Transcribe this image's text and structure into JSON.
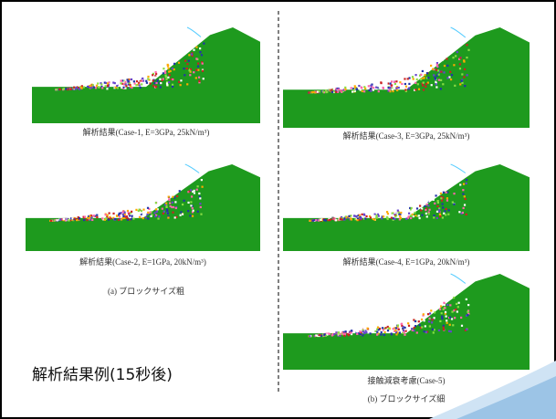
{
  "title": "解析結果例(15秒後)",
  "panels": [
    {
      "caption": "解析結果(Case-1, E=3GPa, 25kN/m³)"
    },
    {
      "caption": "解析結果(Case-2, E=1GPa, 20kN/m³)"
    },
    {
      "caption": "解析結果(Case-3, E=3GPa, 25kN/m³)"
    },
    {
      "caption": "解析結果(Case-4, E=1GPa, 20kN/m³)"
    },
    {
      "caption": "接触減衰考慮(Case-5)"
    }
  ],
  "group_labels": [
    "(a) ブロックサイズ粗",
    "(b) ブロックサイズ細"
  ]
}
